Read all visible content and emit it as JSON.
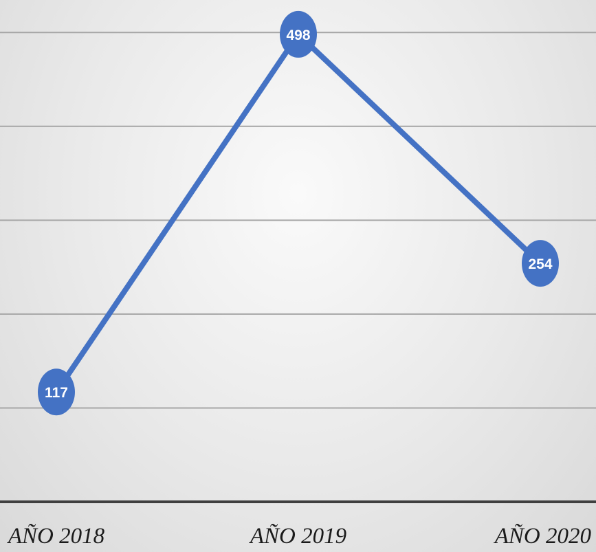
{
  "chart_data": {
    "type": "line",
    "categories": [
      "AÑO 2018",
      "AÑO 2019",
      "AÑO 2020"
    ],
    "series": [
      {
        "values": [
          117,
          498,
          254
        ]
      }
    ],
    "data_labels": [
      "117",
      "498",
      "254"
    ],
    "ylim": [
      0,
      550
    ],
    "y_gridlines": [
      100,
      200,
      300,
      400,
      500
    ],
    "grid": true,
    "legend": "none",
    "colors": {
      "series": "#4472c4",
      "gridline": "#a6a6a6",
      "axis": "#3f3f3f",
      "label_text": "#ffffff"
    }
  }
}
